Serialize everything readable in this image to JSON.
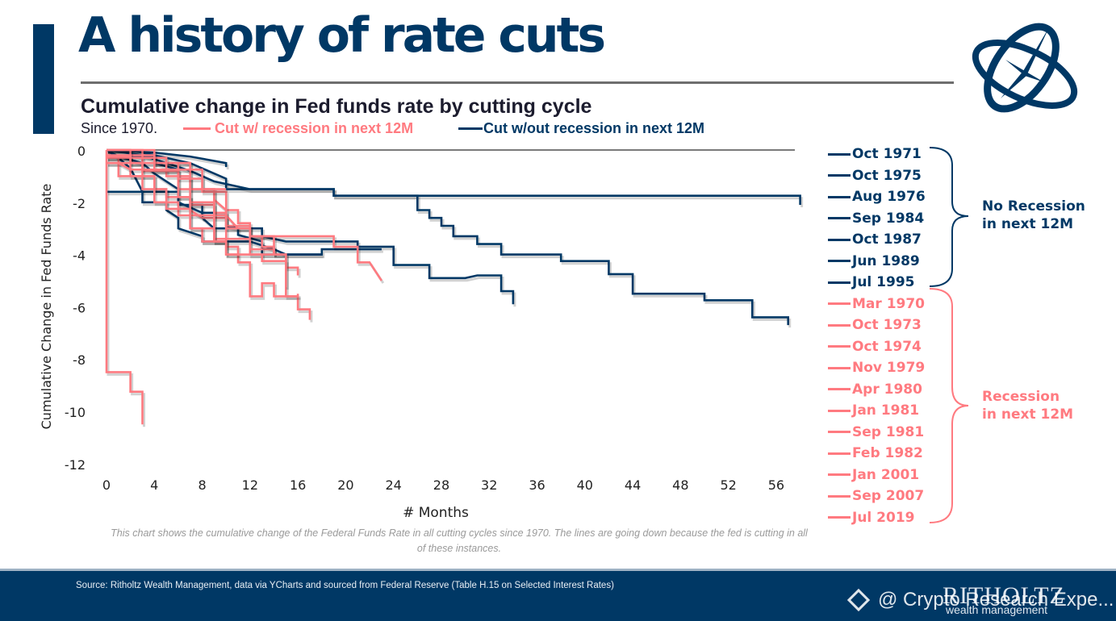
{
  "header": {
    "title": "A history of rate cuts",
    "subtitle": "Cumulative change in Fed funds rate by cutting cycle",
    "since": "Since 1970.",
    "legend_recession": "Cut w/ recession in next 12M",
    "legend_no_recession": "Cut w/out recession in next 12M"
  },
  "colors": {
    "navy": "#003865",
    "pink": "#ff7a80",
    "axis": "#7a7a7a"
  },
  "groups": {
    "no_recession_label_1": "No Recession",
    "no_recession_label_2": "in next 12M",
    "recession_label_1": "Recession",
    "recession_label_2": "in next 12M"
  },
  "note": "This chart shows the cumulative change of the Federal Funds Rate in all cutting cycles since 1970. The lines are going down because the fed is cutting in all of these instances.",
  "footer": {
    "source": "Source: Ritholtz Wealth Management, data via YCharts and sourced from Federal Reserve (Table H.15 on Selected Interest Rates)",
    "brand": "RITHOLTZ",
    "brand_sub": "wealth management",
    "watermark": "@ Crypto Research Expe..."
  },
  "chart_data": {
    "type": "line",
    "title": "Cumulative change in Fed funds rate by cutting cycle",
    "xlabel": "# Months",
    "ylabel": "Cumulative Change in Fed Funds Rate",
    "xlim": [
      0,
      58
    ],
    "ylim": [
      -12,
      0
    ],
    "xticks": [
      0,
      4,
      8,
      12,
      16,
      20,
      24,
      28,
      32,
      36,
      40,
      44,
      48,
      52,
      56
    ],
    "yticks": [
      0,
      -2,
      -4,
      -6,
      -8,
      -10,
      -12
    ],
    "grid": false,
    "legend_position": "right",
    "series": [
      {
        "name": "Oct 1971",
        "group": "no_recession",
        "points": [
          [
            0,
            0
          ],
          [
            4,
            -0.1
          ],
          [
            7,
            -0.25
          ],
          [
            10,
            -0.5
          ],
          [
            10,
            -0.65
          ]
        ]
      },
      {
        "name": "Oct 1975",
        "group": "no_recession",
        "points": [
          [
            0,
            0
          ],
          [
            2,
            0
          ],
          [
            4,
            -0.2
          ],
          [
            7,
            -0.5
          ],
          [
            10,
            -1.1
          ],
          [
            10,
            -1.5
          ],
          [
            19,
            -1.5
          ],
          [
            19,
            -1.75
          ],
          [
            58,
            -1.75
          ],
          [
            58,
            -2.1
          ]
        ]
      },
      {
        "name": "Aug 1976",
        "group": "no_recession",
        "points": [
          [
            0,
            -1.6
          ],
          [
            6,
            -1.6
          ],
          [
            6,
            -2.1
          ],
          [
            8,
            -2.1
          ],
          [
            8,
            -2.6
          ],
          [
            9,
            -3.0
          ],
          [
            13,
            -3.0
          ],
          [
            13,
            -3.3
          ],
          [
            15,
            -3.5
          ],
          [
            21,
            -3.5
          ],
          [
            21,
            -3.7
          ],
          [
            24,
            -3.7
          ],
          [
            24,
            -4.4
          ],
          [
            27,
            -4.4
          ],
          [
            27,
            -4.9
          ],
          [
            30,
            -4.9
          ],
          [
            31,
            -4.8
          ],
          [
            33,
            -4.8
          ],
          [
            33,
            -5.4
          ],
          [
            34,
            -5.4
          ],
          [
            34,
            -5.9
          ]
        ]
      },
      {
        "name": "Sep 1984",
        "group": "no_recession",
        "points": [
          [
            0,
            0
          ],
          [
            3,
            -0.2
          ],
          [
            5,
            -0.5
          ],
          [
            7,
            -0.8
          ],
          [
            9,
            -1.2
          ],
          [
            12,
            -1.5
          ],
          [
            19,
            -1.5
          ],
          [
            19,
            -1.75
          ],
          [
            26,
            -1.75
          ],
          [
            26,
            -2.3
          ],
          [
            27,
            -2.3
          ],
          [
            27,
            -2.6
          ],
          [
            28,
            -2.6
          ],
          [
            28,
            -2.9
          ],
          [
            29,
            -2.9
          ],
          [
            29,
            -3.3
          ],
          [
            31,
            -3.3
          ],
          [
            31,
            -3.6
          ],
          [
            33,
            -3.6
          ],
          [
            33,
            -4.0
          ],
          [
            38,
            -4.0
          ],
          [
            38,
            -4.25
          ],
          [
            42,
            -4.25
          ],
          [
            42,
            -4.75
          ],
          [
            44,
            -4.75
          ],
          [
            44,
            -5.5
          ],
          [
            50,
            -5.5
          ],
          [
            50,
            -5.75
          ],
          [
            54,
            -5.75
          ],
          [
            54,
            -6.4
          ],
          [
            57,
            -6.4
          ],
          [
            57,
            -6.7
          ]
        ]
      },
      {
        "name": "Oct 1987",
        "group": "no_recession",
        "points": [
          [
            0,
            0
          ],
          [
            1,
            -0.25
          ],
          [
            3,
            -0.5
          ],
          [
            4,
            -0.9
          ],
          [
            6,
            -1.5
          ],
          [
            6,
            -2.0
          ],
          [
            8,
            -2.4
          ],
          [
            10,
            -2.4
          ],
          [
            10,
            -2.9
          ],
          [
            11,
            -3.0
          ],
          [
            11,
            -3.25
          ],
          [
            13,
            -3.5
          ],
          [
            13,
            -4.0
          ],
          [
            18,
            -4.0
          ],
          [
            18,
            -3.8
          ],
          [
            23,
            -3.8
          ]
        ]
      },
      {
        "name": "Jun 1989",
        "group": "no_recession",
        "points": [
          [
            0,
            0
          ],
          [
            1,
            -0.3
          ],
          [
            2,
            -0.7
          ],
          [
            3,
            -1.6
          ],
          [
            3,
            -2.0
          ],
          [
            5,
            -2.0
          ],
          [
            5,
            -2.3
          ],
          [
            6,
            -2.6
          ],
          [
            6,
            -3.0
          ],
          [
            8,
            -3.3
          ],
          [
            8,
            -3.5
          ],
          [
            12,
            -3.5
          ],
          [
            14,
            -3.8
          ],
          [
            15,
            -4.0
          ],
          [
            18,
            -4.0
          ]
        ]
      },
      {
        "name": "Jul 1995",
        "group": "no_recession",
        "points": [
          [
            0,
            0
          ],
          [
            1,
            -0.25
          ],
          [
            4,
            -0.25
          ],
          [
            4,
            -0.5
          ],
          [
            6,
            -0.75
          ]
        ]
      },
      {
        "name": "Mar 1970",
        "group": "recession",
        "points": [
          [
            0,
            0
          ],
          [
            0,
            -8.5
          ],
          [
            2,
            -8.5
          ],
          [
            2,
            -9.25
          ],
          [
            3,
            -9.25
          ],
          [
            3,
            -10.5
          ]
        ]
      },
      {
        "name": "Oct 1973",
        "group": "recession",
        "points": [
          [
            0,
            0
          ],
          [
            3,
            0
          ],
          [
            3,
            -0.5
          ],
          [
            7,
            -0.5
          ],
          [
            7,
            -1.5
          ],
          [
            9,
            -1.5
          ],
          [
            9,
            -1.9
          ],
          [
            10,
            -2.3
          ],
          [
            11,
            -2.3
          ],
          [
            11,
            -2.8
          ],
          [
            12,
            -2.8
          ],
          [
            12,
            -3.3
          ],
          [
            19,
            -3.3
          ],
          [
            19,
            -3.7
          ],
          [
            21,
            -3.7
          ],
          [
            21,
            -4.3
          ],
          [
            22,
            -4.3
          ],
          [
            23,
            -5.0
          ]
        ]
      },
      {
        "name": "Oct 1974",
        "group": "recession",
        "points": [
          [
            0,
            -0.2
          ],
          [
            4,
            -0.2
          ],
          [
            4,
            -0.5
          ],
          [
            7,
            -0.5
          ],
          [
            7,
            -2.3
          ],
          [
            8,
            -2.6
          ],
          [
            10,
            -2.6
          ],
          [
            10,
            -3.4
          ],
          [
            12,
            -3.4
          ],
          [
            12,
            -4.0
          ],
          [
            15,
            -4.0
          ],
          [
            15,
            -4.5
          ],
          [
            16,
            -4.5
          ],
          [
            16,
            -4.8
          ]
        ]
      },
      {
        "name": "Nov 1979",
        "group": "recession",
        "points": [
          [
            0,
            -0.3
          ],
          [
            1,
            -0.3
          ],
          [
            1,
            -0.5
          ],
          [
            6,
            -0.5
          ],
          [
            6,
            -1.5
          ],
          [
            9,
            -1.5
          ],
          [
            9,
            -2.4
          ],
          [
            10,
            -2.4
          ],
          [
            10,
            -2.9
          ],
          [
            12,
            -2.9
          ],
          [
            12,
            -3.8
          ],
          [
            14,
            -3.8
          ],
          [
            14,
            -4.0
          ]
        ]
      },
      {
        "name": "Apr 1980",
        "group": "recession",
        "points": [
          [
            0,
            0
          ],
          [
            2,
            0
          ],
          [
            2,
            -0.5
          ],
          [
            3,
            -0.5
          ],
          [
            3,
            -0.8
          ],
          [
            6,
            -0.8
          ],
          [
            6,
            -1.8
          ],
          [
            7,
            -1.8
          ],
          [
            7,
            -2.1
          ],
          [
            9,
            -2.1
          ],
          [
            9,
            -2.5
          ],
          [
            10,
            -2.5
          ],
          [
            11,
            -3.0
          ],
          [
            12,
            -3.0
          ],
          [
            12,
            -3.3
          ],
          [
            13,
            -3.3
          ],
          [
            13,
            -3.7
          ],
          [
            14,
            -3.7
          ],
          [
            14,
            -4.0
          ]
        ]
      },
      {
        "name": "Jan 1981",
        "group": "recession",
        "points": [
          [
            0,
            -0.3
          ],
          [
            5,
            -0.3
          ],
          [
            5,
            -1.0
          ],
          [
            7,
            -1.0
          ],
          [
            7,
            -2.0
          ],
          [
            9,
            -2.0
          ],
          [
            9,
            -3.4
          ],
          [
            10,
            -3.4
          ],
          [
            10,
            -3.7
          ],
          [
            11,
            -3.7
          ],
          [
            11,
            -4.3
          ],
          [
            12,
            -4.3
          ],
          [
            12,
            -5.6
          ],
          [
            13,
            -5.6
          ],
          [
            13,
            -5.1
          ],
          [
            14,
            -5.1
          ],
          [
            14,
            -5.6
          ],
          [
            16,
            -5.6
          ],
          [
            16,
            -6.1
          ],
          [
            17,
            -6.1
          ],
          [
            17,
            -6.5
          ]
        ]
      },
      {
        "name": "Sep 1981",
        "group": "recession",
        "points": [
          [
            0,
            0
          ],
          [
            4,
            0
          ],
          [
            4,
            -0.8
          ],
          [
            6,
            -0.8
          ],
          [
            6,
            -1.1
          ],
          [
            8,
            -1.1
          ],
          [
            8,
            -1.6
          ],
          [
            10,
            -1.6
          ],
          [
            10,
            -3.0
          ],
          [
            12,
            -3.0
          ],
          [
            12,
            -3.3
          ],
          [
            14,
            -3.3
          ],
          [
            14,
            -4.0
          ],
          [
            15,
            -4.0
          ],
          [
            15,
            -5.6
          ],
          [
            16,
            -5.6
          ],
          [
            16,
            -5.5
          ]
        ]
      },
      {
        "name": "Feb 1982",
        "group": "recession",
        "points": [
          [
            0,
            -0.3
          ],
          [
            2,
            -0.3
          ],
          [
            2,
            -1.0
          ],
          [
            4,
            -1.0
          ],
          [
            4,
            -1.5
          ],
          [
            5,
            -1.5
          ],
          [
            5,
            -1.8
          ],
          [
            7,
            -1.8
          ],
          [
            7,
            -2.5
          ],
          [
            9,
            -2.5
          ],
          [
            9,
            -3.5
          ],
          [
            10,
            -3.5
          ],
          [
            10,
            -4.0
          ]
        ]
      },
      {
        "name": "Jan 2001",
        "group": "recession",
        "points": [
          [
            0,
            -0.5
          ],
          [
            1,
            -0.5
          ],
          [
            1,
            -1.0
          ],
          [
            3,
            -1.0
          ],
          [
            3,
            -1.5
          ],
          [
            5,
            -1.5
          ],
          [
            5,
            -2.0
          ],
          [
            6,
            -2.0
          ],
          [
            6,
            -2.5
          ],
          [
            7,
            -2.5
          ],
          [
            7,
            -3.0
          ],
          [
            8,
            -3.0
          ],
          [
            8,
            -3.5
          ],
          [
            10,
            -3.5
          ],
          [
            10,
            -4.0
          ],
          [
            11,
            -4.0
          ]
        ]
      },
      {
        "name": "Sep 2007",
        "group": "recession",
        "points": [
          [
            0,
            -0.5
          ],
          [
            1,
            -0.5
          ],
          [
            2,
            -0.75
          ],
          [
            3,
            -0.75
          ],
          [
            3,
            -1.0
          ],
          [
            4,
            -1.0
          ],
          [
            4,
            -2.0
          ],
          [
            5,
            -2.0
          ],
          [
            5,
            -2.25
          ],
          [
            7,
            -2.25
          ],
          [
            7,
            -3.0
          ],
          [
            9,
            -3.0
          ],
          [
            9,
            -3.5
          ],
          [
            10,
            -3.5
          ],
          [
            10,
            -4.0
          ],
          [
            13,
            -4.0
          ],
          [
            13,
            -4.25
          ],
          [
            15,
            -4.25
          ],
          [
            15,
            -5.25
          ]
        ]
      },
      {
        "name": "Jul 2019",
        "group": "recession",
        "points": [
          [
            0,
            -0.25
          ],
          [
            2,
            -0.25
          ],
          [
            2,
            -0.5
          ],
          [
            3,
            -0.5
          ],
          [
            3,
            -0.75
          ],
          [
            8,
            -0.75
          ],
          [
            8,
            -1.5
          ],
          [
            10,
            -1.5
          ]
        ]
      }
    ]
  }
}
